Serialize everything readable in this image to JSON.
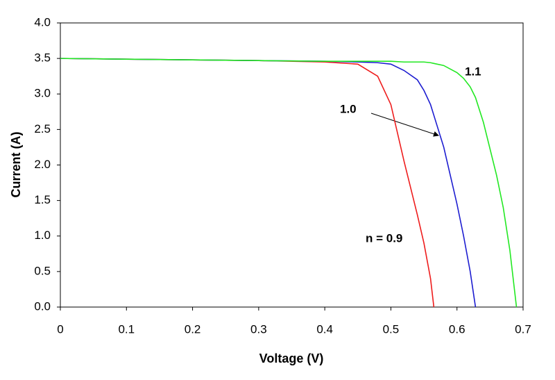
{
  "chart_data": {
    "type": "line",
    "x_label": "Voltage (V)",
    "y_label": "Current (A)",
    "x": [
      0,
      0.1,
      0.2,
      0.3,
      0.4,
      0.45,
      0.48,
      0.5,
      0.52,
      0.54,
      0.55,
      0.56,
      0.565,
      0.58,
      0.6,
      0.61,
      0.62,
      0.628,
      0.64,
      0.66,
      0.67,
      0.68,
      0.69
    ],
    "series": [
      {
        "name": "n = 0.9",
        "color": "#ee1c1c",
        "values": [
          3.5,
          3.49,
          3.48,
          3.47,
          3.45,
          3.42,
          3.25,
          2.85,
          2.05,
          1.3,
          0.9,
          0.4,
          0,
          null,
          null,
          null,
          null,
          null,
          null,
          null,
          null,
          null,
          null
        ]
      },
      {
        "name": "1.0",
        "color": "#1c1cd0",
        "values": [
          3.5,
          3.49,
          3.48,
          3.47,
          3.46,
          3.45,
          3.44,
          3.42,
          3.33,
          3.2,
          3.05,
          2.85,
          2.7,
          2.25,
          1.45,
          1.0,
          0.5,
          0,
          null,
          null,
          null,
          null,
          null
        ]
      },
      {
        "name": "1.1",
        "color": "#22e822",
        "values": [
          3.5,
          3.49,
          3.48,
          3.47,
          3.46,
          3.46,
          3.46,
          3.46,
          3.45,
          3.45,
          3.45,
          3.44,
          3.43,
          3.4,
          3.3,
          3.22,
          3.1,
          2.95,
          2.6,
          1.85,
          1.4,
          0.8,
          0
        ]
      }
    ],
    "xlim": [
      0,
      0.7
    ],
    "xticks": [
      0,
      0.1,
      0.2,
      0.3,
      0.4,
      0.5,
      0.6,
      0.7
    ],
    "ylim": [
      0,
      4
    ],
    "yticks": [
      {
        "value": 0,
        "label": "0.0"
      },
      0.5,
      {
        "value": 1,
        "label": "1.0"
      },
      1.5,
      {
        "value": 2,
        "label": "2.0"
      },
      2.5,
      {
        "value": 3,
        "label": "3.0"
      },
      3.5,
      {
        "value": 4,
        "label": "4.0"
      }
    ],
    "grid": false
  }
}
